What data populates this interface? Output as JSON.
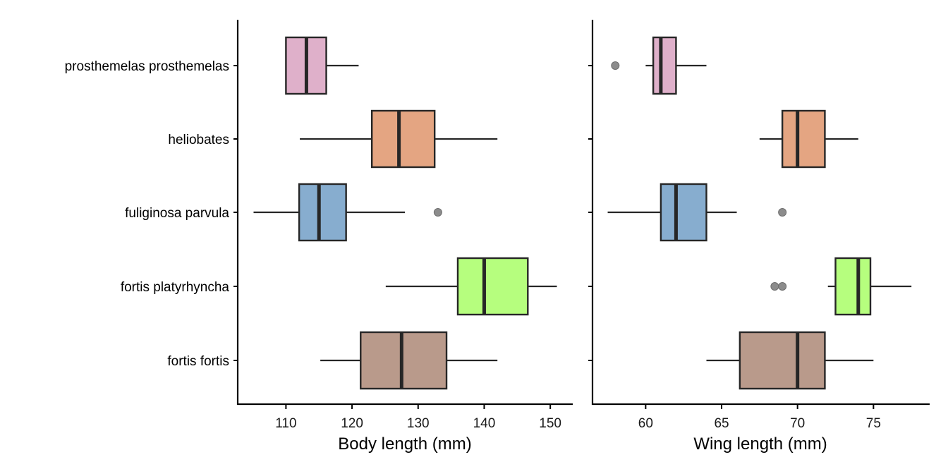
{
  "chart_data": [
    {
      "type": "boxplot",
      "orientation": "horizontal",
      "xlabel": "Body length (mm)",
      "ylabel": "",
      "xlim": [
        102.7,
        153.4
      ],
      "xticks": [
        110,
        120,
        130,
        140,
        150
      ],
      "grid": false,
      "categories": [
        "prosthemelas prosthemelas",
        "heliobates",
        "fuliginosa parvula",
        "fortis platyrhyncha",
        "fortis fortis"
      ],
      "colors": [
        "#dfb0ca",
        "#e4a582",
        "#87adcf",
        "#b6fe7e",
        "#b99a8b"
      ],
      "boxes": [
        {
          "whisker_low": 110,
          "q1": 110,
          "median": 113.1,
          "q3": 116.1,
          "whisker_high": 121,
          "outliers": []
        },
        {
          "whisker_low": 112.1,
          "q1": 123,
          "median": 127.1,
          "q3": 132.5,
          "whisker_high": 142,
          "outliers": []
        },
        {
          "whisker_low": 105.1,
          "q1": 112,
          "median": 115,
          "q3": 119.1,
          "whisker_high": 128,
          "outliers": [
            133
          ]
        },
        {
          "whisker_low": 125.1,
          "q1": 136,
          "median": 140,
          "q3": 146.6,
          "whisker_high": 151,
          "outliers": []
        },
        {
          "whisker_low": 115.2,
          "q1": 121.3,
          "median": 127.5,
          "q3": 134.3,
          "whisker_high": 142,
          "outliers": []
        }
      ]
    },
    {
      "type": "boxplot",
      "orientation": "horizontal",
      "xlabel": "Wing length (mm)",
      "ylabel": "",
      "xlim": [
        56.5,
        78.7
      ],
      "xticks": [
        60,
        65,
        70,
        75
      ],
      "grid": false,
      "categories": [
        "prosthemelas prosthemelas",
        "heliobates",
        "fuliginosa parvula",
        "fortis platyrhyncha",
        "fortis fortis"
      ],
      "colors": [
        "#dfb0ca",
        "#e4a582",
        "#87adcf",
        "#b6fe7e",
        "#b99a8b"
      ],
      "boxes": [
        {
          "whisker_low": 60,
          "q1": 60.5,
          "median": 61,
          "q3": 62,
          "whisker_high": 64,
          "outliers": [
            58
          ]
        },
        {
          "whisker_low": 67.5,
          "q1": 69,
          "median": 70,
          "q3": 71.8,
          "whisker_high": 74,
          "outliers": []
        },
        {
          "whisker_low": 57.5,
          "q1": 61,
          "median": 62,
          "q3": 64,
          "whisker_high": 66,
          "outliers": [
            69
          ]
        },
        {
          "whisker_low": 72,
          "q1": 72.5,
          "median": 74,
          "q3": 74.8,
          "whisker_high": 77.5,
          "outliers": [
            68.5,
            69
          ]
        },
        {
          "whisker_low": 64,
          "q1": 66.2,
          "median": 70,
          "q3": 71.8,
          "whisker_high": 75,
          "outliers": []
        }
      ]
    }
  ]
}
